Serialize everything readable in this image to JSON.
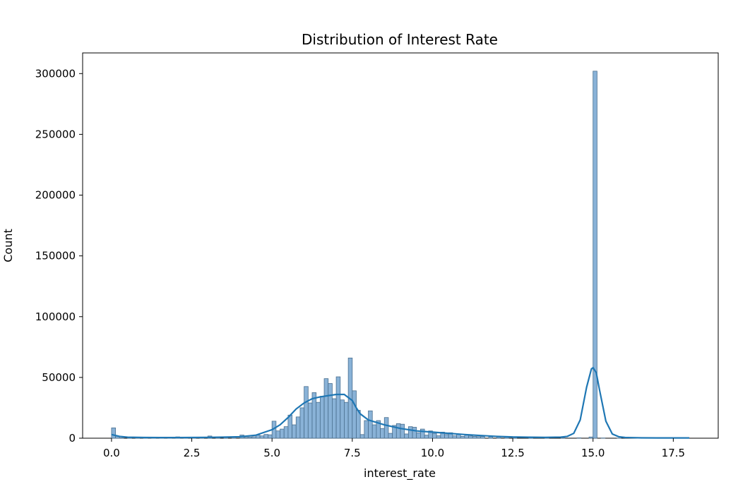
{
  "chart_data": {
    "type": "bar",
    "title": "Distribution of Interest Rate",
    "xlabel": "interest_rate",
    "ylabel": "Count",
    "xlim": [
      -0.9,
      18.9
    ],
    "ylim": [
      0,
      317000
    ],
    "x_ticks": [
      0.0,
      2.5,
      5.0,
      7.5,
      10.0,
      12.5,
      15.0,
      17.5
    ],
    "x_tick_labels": [
      "0.0",
      "2.5",
      "5.0",
      "7.5",
      "10.0",
      "12.5",
      "15.0",
      "17.5"
    ],
    "y_ticks": [
      0,
      50000,
      100000,
      150000,
      200000,
      250000,
      300000
    ],
    "y_tick_labels": [
      "0",
      "50000",
      "100000",
      "150000",
      "200000",
      "250000",
      "300000"
    ],
    "grid": false,
    "bin_width": 0.125,
    "bins": [
      [
        0.0,
        8500
      ],
      [
        0.125,
        1600
      ],
      [
        0.25,
        300
      ],
      [
        0.5,
        200
      ],
      [
        0.75,
        200
      ],
      [
        1.0,
        700
      ],
      [
        1.25,
        200
      ],
      [
        1.5,
        200
      ],
      [
        1.75,
        200
      ],
      [
        2.0,
        1100
      ],
      [
        2.25,
        300
      ],
      [
        2.5,
        400
      ],
      [
        2.75,
        300
      ],
      [
        3.0,
        1800
      ],
      [
        3.25,
        400
      ],
      [
        3.5,
        600
      ],
      [
        3.75,
        700
      ],
      [
        4.0,
        2600
      ],
      [
        4.125,
        700
      ],
      [
        4.25,
        1000
      ],
      [
        4.375,
        1200
      ],
      [
        4.5,
        2500
      ],
      [
        4.625,
        1900
      ],
      [
        4.75,
        3100
      ],
      [
        4.875,
        2800
      ],
      [
        5.0,
        14000
      ],
      [
        5.125,
        6000
      ],
      [
        5.25,
        7500
      ],
      [
        5.375,
        9500
      ],
      [
        5.5,
        19000
      ],
      [
        5.625,
        11000
      ],
      [
        5.75,
        17500
      ],
      [
        5.875,
        25000
      ],
      [
        6.0,
        42500
      ],
      [
        6.125,
        29000
      ],
      [
        6.25,
        37500
      ],
      [
        6.375,
        29500
      ],
      [
        6.5,
        34500
      ],
      [
        6.625,
        49000
      ],
      [
        6.75,
        45000
      ],
      [
        6.875,
        32500
      ],
      [
        7.0,
        50500
      ],
      [
        7.125,
        31500
      ],
      [
        7.25,
        29500
      ],
      [
        7.375,
        66000
      ],
      [
        7.5,
        39000
      ],
      [
        7.625,
        23000
      ],
      [
        7.75,
        3000
      ],
      [
        7.875,
        14500
      ],
      [
        8.0,
        22500
      ],
      [
        8.125,
        11000
      ],
      [
        8.25,
        14500
      ],
      [
        8.375,
        8000
      ],
      [
        8.5,
        17000
      ],
      [
        8.625,
        4000
      ],
      [
        8.75,
        10500
      ],
      [
        8.875,
        12000
      ],
      [
        9.0,
        11500
      ],
      [
        9.125,
        3500
      ],
      [
        9.25,
        9500
      ],
      [
        9.375,
        9000
      ],
      [
        9.5,
        4500
      ],
      [
        9.625,
        7500
      ],
      [
        9.75,
        2500
      ],
      [
        9.875,
        6000
      ],
      [
        10.0,
        4000
      ],
      [
        10.125,
        2000
      ],
      [
        10.25,
        5000
      ],
      [
        10.375,
        3000
      ],
      [
        10.5,
        4500
      ],
      [
        10.625,
        2000
      ],
      [
        10.75,
        3500
      ],
      [
        10.875,
        1500
      ],
      [
        11.0,
        2500
      ],
      [
        11.125,
        1800
      ],
      [
        11.25,
        1500
      ],
      [
        11.375,
        1300
      ],
      [
        11.5,
        1400
      ],
      [
        11.75,
        1200
      ],
      [
        12.0,
        1000
      ],
      [
        12.25,
        800
      ],
      [
        12.5,
        500
      ],
      [
        13.0,
        400
      ],
      [
        13.5,
        300
      ],
      [
        14.0,
        400
      ],
      [
        14.5,
        300
      ],
      [
        14.875,
        1000
      ],
      [
        15.0,
        302000
      ],
      [
        15.25,
        200
      ],
      [
        15.75,
        100
      ],
      [
        16.5,
        100
      ],
      [
        17.0,
        100
      ],
      [
        17.5,
        100
      ]
    ],
    "kde": [
      [
        0.0,
        3000
      ],
      [
        0.25,
        1500
      ],
      [
        0.5,
        800
      ],
      [
        1.0,
        600
      ],
      [
        1.5,
        500
      ],
      [
        2.0,
        500
      ],
      [
        2.5,
        600
      ],
      [
        3.0,
        700
      ],
      [
        3.5,
        900
      ],
      [
        4.0,
        1200
      ],
      [
        4.5,
        2500
      ],
      [
        5.0,
        7000
      ],
      [
        5.25,
        11000
      ],
      [
        5.5,
        17000
      ],
      [
        5.75,
        24000
      ],
      [
        6.0,
        29000
      ],
      [
        6.25,
        32500
      ],
      [
        6.5,
        34000
      ],
      [
        6.75,
        35000
      ],
      [
        7.0,
        36000
      ],
      [
        7.25,
        36000
      ],
      [
        7.5,
        31000
      ],
      [
        7.625,
        25000
      ],
      [
        7.75,
        20000
      ],
      [
        8.0,
        15000
      ],
      [
        8.5,
        11000
      ],
      [
        9.0,
        8000
      ],
      [
        9.5,
        6000
      ],
      [
        10.0,
        5000
      ],
      [
        10.5,
        4000
      ],
      [
        11.0,
        3000
      ],
      [
        11.5,
        2200
      ],
      [
        12.0,
        1500
      ],
      [
        12.5,
        1000
      ],
      [
        13.0,
        800
      ],
      [
        13.5,
        700
      ],
      [
        14.0,
        900
      ],
      [
        14.2,
        1500
      ],
      [
        14.4,
        4000
      ],
      [
        14.6,
        15000
      ],
      [
        14.8,
        42000
      ],
      [
        14.95,
        57000
      ],
      [
        15.0,
        58000
      ],
      [
        15.1,
        54000
      ],
      [
        15.2,
        40000
      ],
      [
        15.4,
        14000
      ],
      [
        15.6,
        3500
      ],
      [
        15.8,
        1200
      ],
      [
        16.0,
        600
      ],
      [
        16.5,
        300
      ],
      [
        17.0,
        200
      ],
      [
        17.5,
        200
      ],
      [
        18.0,
        200
      ]
    ],
    "colors": {
      "bar_fill": "#89b2d7",
      "bar_edge": "#4a6f8f",
      "kde_line": "#1f77b4",
      "axis": "#000000"
    }
  }
}
